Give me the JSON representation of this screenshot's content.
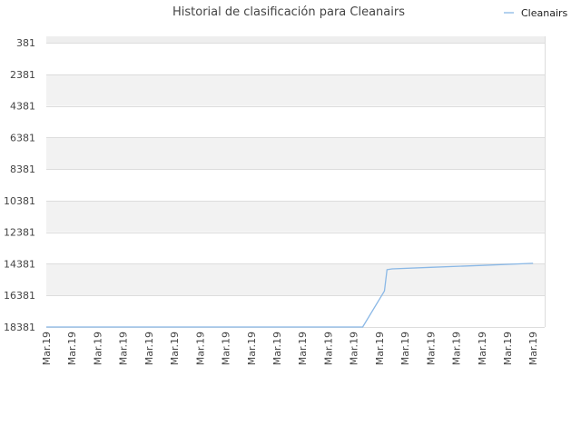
{
  "chart_data": {
    "type": "line",
    "title": "Historial de clasificación para Cleanairs",
    "xlabel": "",
    "ylabel": "",
    "y_inverted": true,
    "ylim": [
      381,
      18381
    ],
    "y_ticks": [
      381,
      2381,
      4381,
      6381,
      8381,
      10381,
      12381,
      14381,
      16381,
      18381
    ],
    "x_ticks": [
      "Mar.19",
      "Mar.19",
      "Mar.19",
      "Mar.19",
      "Mar.19",
      "Mar.19",
      "Mar.19",
      "Mar.19",
      "Mar.19",
      "Mar.19",
      "Mar.19",
      "Mar.19",
      "Mar.19",
      "Mar.19",
      "Mar.19",
      "Mar.19",
      "Mar.19",
      "Mar.19",
      "Mar.19",
      "Mar.19"
    ],
    "grid": true,
    "band_fill_alternating": true,
    "legend_position": "top-right",
    "series": [
      {
        "name": "Cleanairs",
        "color": "#8ab8e6",
        "points": [
          {
            "i": 0.0,
            "y": 18381
          },
          {
            "i": 12.35,
            "y": 18381
          },
          {
            "i": 13.2,
            "y": 16100
          },
          {
            "i": 13.3,
            "y": 14750
          },
          {
            "i": 13.5,
            "y": 14700
          },
          {
            "i": 15.0,
            "y": 14600
          },
          {
            "i": 17.0,
            "y": 14480
          },
          {
            "i": 19.0,
            "y": 14350
          }
        ]
      }
    ]
  },
  "legend": [
    {
      "label": "Cleanairs",
      "color": "#8ab8e6"
    }
  ]
}
